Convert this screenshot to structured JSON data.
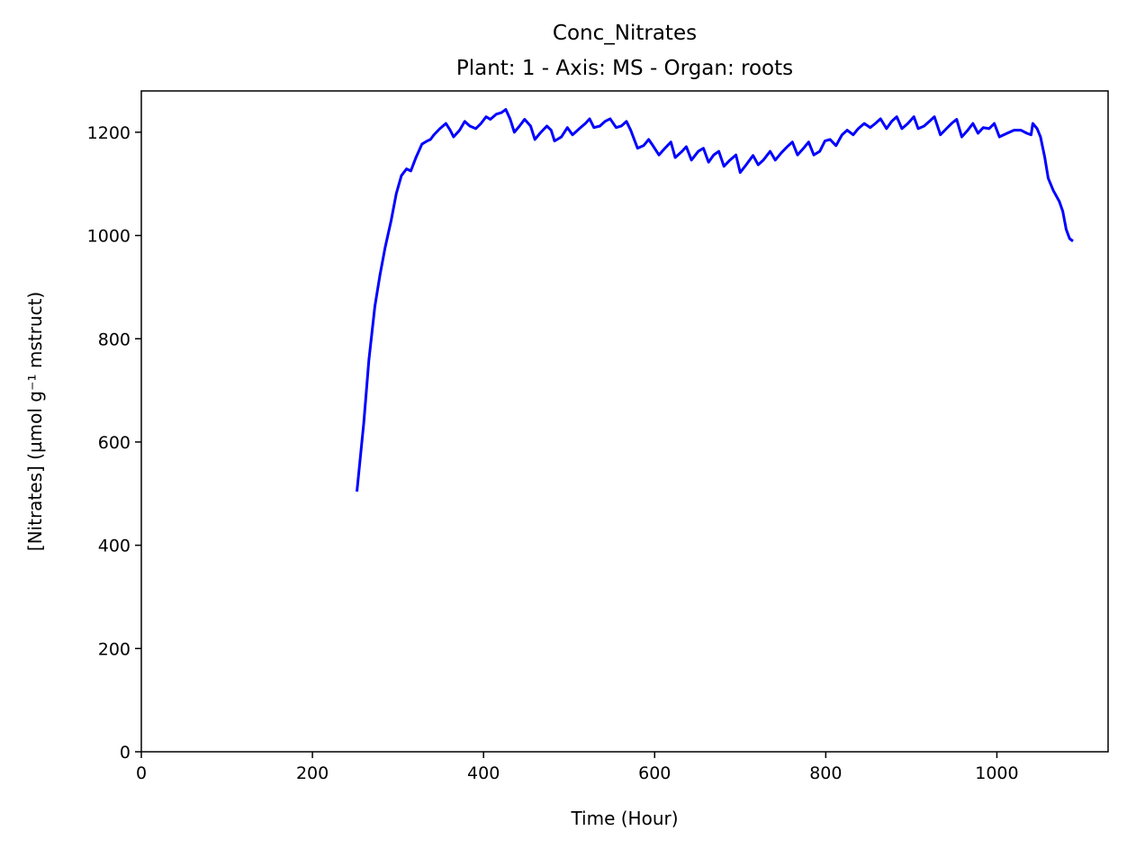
{
  "chart_data": {
    "type": "line",
    "title": "Conc_Nitrates",
    "subtitle": "Plant: 1 - Axis: MS - Organ: roots",
    "xlabel": "Time (Hour)",
    "ylabel": "[Nitrates] (µmol g⁻¹ mstruct)",
    "xlim": [
      0,
      1130
    ],
    "ylim": [
      0,
      1280
    ],
    "xticks": [
      0,
      200,
      400,
      600,
      800,
      1000
    ],
    "yticks": [
      0,
      200,
      400,
      600,
      800,
      1000,
      1200
    ],
    "grid": false,
    "x": [
      252,
      260,
      266,
      273,
      279,
      285,
      292,
      298,
      304,
      310,
      315,
      321,
      328,
      334,
      338,
      342,
      349,
      356,
      361,
      365,
      372,
      378,
      384,
      391,
      397,
      403,
      408,
      415,
      421,
      426,
      431,
      436,
      442,
      448,
      455,
      460,
      466,
      474,
      479,
      483,
      491,
      498,
      504,
      512,
      519,
      524,
      529,
      536,
      542,
      548,
      555,
      561,
      567,
      572,
      580,
      587,
      593,
      598,
      605,
      612,
      619,
      624,
      632,
      637,
      643,
      651,
      657,
      663,
      669,
      675,
      681,
      688,
      695,
      700,
      707,
      715,
      721,
      727,
      735,
      741,
      748,
      755,
      761,
      767,
      774,
      780,
      786,
      793,
      799,
      805,
      812,
      819,
      825,
      832,
      838,
      845,
      852,
      858,
      864,
      871,
      877,
      883,
      889,
      896,
      903,
      908,
      915,
      921,
      927,
      934,
      941,
      947,
      953,
      959,
      966,
      972,
      978,
      984,
      991,
      997,
      1003,
      1012,
      1020,
      1028,
      1035,
      1040,
      1042,
      1047,
      1051,
      1056,
      1060,
      1066,
      1073,
      1077,
      1081,
      1085,
      1089
    ],
    "series": [
      {
        "name": "Conc_Nitrates",
        "color": "#0000ff",
        "values": [
          504,
          637,
          759,
          863,
          924,
          977,
          1029,
          1081,
          1116,
          1129,
          1125,
          1151,
          1177,
          1183,
          1186,
          1195,
          1207,
          1217,
          1204,
          1191,
          1204,
          1221,
          1212,
          1207,
          1217,
          1230,
          1225,
          1235,
          1238,
          1244,
          1226,
          1200,
          1212,
          1225,
          1212,
          1186,
          1198,
          1212,
          1204,
          1183,
          1191,
          1209,
          1195,
          1207,
          1217,
          1226,
          1209,
          1212,
          1221,
          1226,
          1209,
          1212,
          1221,
          1204,
          1169,
          1174,
          1186,
          1174,
          1156,
          1169,
          1181,
          1151,
          1163,
          1172,
          1146,
          1163,
          1169,
          1142,
          1156,
          1163,
          1134,
          1146,
          1156,
          1122,
          1137,
          1155,
          1137,
          1146,
          1163,
          1146,
          1160,
          1172,
          1181,
          1156,
          1169,
          1181,
          1156,
          1163,
          1183,
          1186,
          1174,
          1195,
          1204,
          1195,
          1207,
          1217,
          1209,
          1217,
          1226,
          1207,
          1221,
          1230,
          1207,
          1217,
          1230,
          1207,
          1212,
          1221,
          1230,
          1195,
          1207,
          1217,
          1225,
          1191,
          1204,
          1217,
          1198,
          1209,
          1207,
          1217,
          1191,
          1198,
          1204,
          1204,
          1198,
          1195,
          1217,
          1207,
          1191,
          1151,
          1111,
          1087,
          1066,
          1047,
          1012,
          994,
          989
        ]
      }
    ]
  }
}
